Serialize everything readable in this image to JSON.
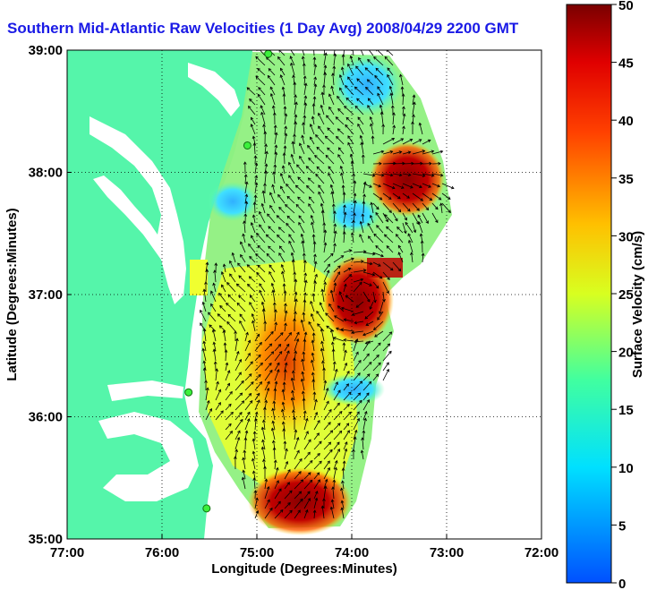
{
  "title": "Southern Mid-Atlantic Raw Velocities (1 Day Avg) 2008/04/29 2200 GMT",
  "map": {
    "xlabel": "Longitude (Degrees:Minutes)",
    "ylabel": "Latitude (Degrees:Minutes)",
    "lon_range": [
      -77,
      -72
    ],
    "lat_range": [
      35,
      39
    ],
    "x_ticks": [
      {
        "value": -77,
        "label": "77:00"
      },
      {
        "value": -76,
        "label": "76:00"
      },
      {
        "value": -75,
        "label": "75:00"
      },
      {
        "value": -74,
        "label": "74:00"
      },
      {
        "value": -73,
        "label": "73:00"
      },
      {
        "value": -72,
        "label": "72:00"
      }
    ],
    "y_ticks": [
      {
        "value": 35,
        "label": "35:00"
      },
      {
        "value": 36,
        "label": "36:00"
      },
      {
        "value": 37,
        "label": "37:00"
      },
      {
        "value": 38,
        "label": "38:00"
      },
      {
        "value": 39,
        "label": "39:00"
      }
    ],
    "grid": true,
    "land_color": "#55f5aa",
    "water_color": "#ffffff"
  },
  "colorbar": {
    "label": "Surface Velocity (cm/s)",
    "min": 0,
    "max": 50,
    "ticks": [
      {
        "value": 0,
        "label": "0"
      },
      {
        "value": 5,
        "label": "5"
      },
      {
        "value": 10,
        "label": "10"
      },
      {
        "value": 15,
        "label": "15"
      },
      {
        "value": 20,
        "label": "20"
      },
      {
        "value": 25,
        "label": "25"
      },
      {
        "value": 30,
        "label": "30"
      },
      {
        "value": 35,
        "label": "35"
      },
      {
        "value": 40,
        "label": "40"
      },
      {
        "value": 45,
        "label": "45"
      },
      {
        "value": 50,
        "label": "50"
      }
    ]
  },
  "stations": [
    {
      "lon": -74.88,
      "lat": 38.97
    },
    {
      "lon": -75.1,
      "lat": 38.22
    },
    {
      "lon": -75.72,
      "lat": 36.2
    },
    {
      "lon": -75.53,
      "lat": 35.25
    }
  ]
}
